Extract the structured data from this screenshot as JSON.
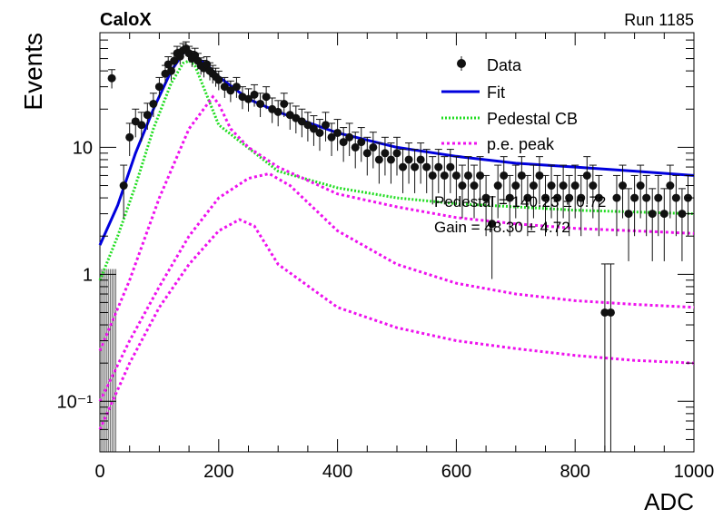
{
  "header": {
    "left": "CaloX",
    "right": "Run 1185"
  },
  "axes": {
    "xlabel": "ADC",
    "ylabel": "Events"
  },
  "stats": {
    "pedestal": "Pedestal = 140.23 ± 0.72",
    "gain": "Gain = 48.30 ± 4.72"
  },
  "legend": {
    "data": "Data",
    "fit": "Fit",
    "pedestal": "Pedestal CB",
    "pe": "p.e. peak"
  },
  "colors": {
    "data": "#111111",
    "fit": "#0000dd",
    "pedestal": "#22dd22",
    "pe": "#ee11ee"
  },
  "chart_data": {
    "type": "scatter",
    "xlim": [
      0,
      1000
    ],
    "ylim": [
      0.04,
      80
    ],
    "yscale": "log",
    "x_ticks": [
      {
        "v": 0,
        "label": "0"
      },
      {
        "v": 200,
        "label": "200"
      },
      {
        "v": 400,
        "label": "400"
      },
      {
        "v": 600,
        "label": "600"
      },
      {
        "v": 800,
        "label": "800"
      },
      {
        "v": 1000,
        "label": "1000"
      }
    ],
    "y_ticks": [
      {
        "v": 0.1,
        "label": "10⁻¹"
      },
      {
        "v": 1,
        "label": "1"
      },
      {
        "v": 10,
        "label": "10"
      }
    ],
    "data_points": [
      [
        20,
        35
      ],
      [
        40,
        5
      ],
      [
        50,
        12
      ],
      [
        60,
        16
      ],
      [
        70,
        15
      ],
      [
        80,
        18
      ],
      [
        90,
        22
      ],
      [
        100,
        30
      ],
      [
        110,
        38
      ],
      [
        115,
        45
      ],
      [
        120,
        40
      ],
      [
        125,
        48
      ],
      [
        130,
        55
      ],
      [
        135,
        52
      ],
      [
        140,
        58
      ],
      [
        145,
        60
      ],
      [
        150,
        55
      ],
      [
        155,
        50
      ],
      [
        160,
        53
      ],
      [
        165,
        48
      ],
      [
        170,
        44
      ],
      [
        175,
        42
      ],
      [
        180,
        45
      ],
      [
        185,
        40
      ],
      [
        190,
        38
      ],
      [
        195,
        36
      ],
      [
        200,
        34
      ],
      [
        210,
        30
      ],
      [
        220,
        28
      ],
      [
        230,
        30
      ],
      [
        240,
        25
      ],
      [
        250,
        24
      ],
      [
        260,
        26
      ],
      [
        270,
        22
      ],
      [
        280,
        25
      ],
      [
        290,
        20
      ],
      [
        300,
        19
      ],
      [
        310,
        22
      ],
      [
        320,
        18
      ],
      [
        330,
        17
      ],
      [
        340,
        16
      ],
      [
        350,
        15
      ],
      [
        360,
        14
      ],
      [
        370,
        13
      ],
      [
        380,
        15
      ],
      [
        390,
        12
      ],
      [
        400,
        13
      ],
      [
        410,
        11
      ],
      [
        420,
        12
      ],
      [
        430,
        10
      ],
      [
        440,
        11
      ],
      [
        450,
        9
      ],
      [
        460,
        10
      ],
      [
        470,
        8
      ],
      [
        480,
        9
      ],
      [
        490,
        8
      ],
      [
        500,
        9
      ],
      [
        510,
        7
      ],
      [
        520,
        8
      ],
      [
        530,
        7
      ],
      [
        540,
        8
      ],
      [
        550,
        7
      ],
      [
        560,
        6
      ],
      [
        570,
        7
      ],
      [
        580,
        6
      ],
      [
        590,
        7
      ],
      [
        600,
        6
      ],
      [
        610,
        5
      ],
      [
        620,
        6
      ],
      [
        630,
        5
      ],
      [
        640,
        6
      ],
      [
        650,
        4
      ],
      [
        660,
        2.5
      ],
      [
        670,
        5
      ],
      [
        680,
        6
      ],
      [
        690,
        4
      ],
      [
        700,
        5
      ],
      [
        710,
        6
      ],
      [
        720,
        4
      ],
      [
        730,
        5
      ],
      [
        740,
        6
      ],
      [
        750,
        4
      ],
      [
        760,
        5
      ],
      [
        770,
        4
      ],
      [
        780,
        5
      ],
      [
        790,
        4
      ],
      [
        800,
        5
      ],
      [
        810,
        4
      ],
      [
        820,
        6
      ],
      [
        830,
        5
      ],
      [
        840,
        4
      ],
      [
        850,
        0.5
      ],
      [
        860,
        0.5
      ],
      [
        870,
        4
      ],
      [
        880,
        5
      ],
      [
        890,
        3
      ],
      [
        900,
        4
      ],
      [
        910,
        5
      ],
      [
        920,
        4
      ],
      [
        930,
        3
      ],
      [
        940,
        4
      ],
      [
        950,
        3
      ],
      [
        960,
        5
      ],
      [
        970,
        4
      ],
      [
        980,
        3
      ],
      [
        990,
        4
      ]
    ],
    "series": [
      {
        "name": "Fit",
        "x": [
          0,
          30,
          60,
          90,
          120,
          140,
          150,
          160,
          180,
          200,
          250,
          300,
          400,
          500,
          600,
          700,
          800,
          900,
          1000
        ],
        "y": [
          1.7,
          3.5,
          9,
          20,
          40,
          55,
          58,
          52,
          45,
          36,
          24,
          19,
          13,
          10,
          8.5,
          7.5,
          7,
          6.5,
          6
        ]
      },
      {
        "name": "Pedestal CB",
        "x": [
          0,
          30,
          60,
          90,
          120,
          140,
          150,
          160,
          200,
          300,
          400,
          500,
          600,
          700,
          800,
          900,
          1000
        ],
        "y": [
          0.9,
          2,
          5,
          14,
          32,
          46,
          48,
          44,
          15,
          6.5,
          4.8,
          4,
          3.6,
          3.4,
          3.2,
          3.1,
          3
        ]
      },
      {
        "name": "p.e. peak",
        "x": [
          0,
          50,
          100,
          150,
          190,
          200,
          220,
          250,
          300,
          400,
          500,
          600,
          700,
          800,
          900,
          1000
        ],
        "y": [
          0.25,
          0.9,
          4,
          14,
          25,
          22,
          14,
          10,
          7,
          4.3,
          3.4,
          2.8,
          2.5,
          2.3,
          2.2,
          2.1
        ]
      },
      {
        "name": "p.e. peak",
        "x": [
          0,
          50,
          100,
          150,
          200,
          250,
          285,
          320,
          400,
          500,
          600,
          700,
          800,
          900,
          1000
        ],
        "y": [
          0.1,
          0.3,
          0.8,
          2.0,
          4.0,
          5.7,
          6.2,
          5.0,
          2.2,
          1.2,
          0.85,
          0.7,
          0.62,
          0.58,
          0.55
        ]
      },
      {
        "name": "p.e. peak",
        "x": [
          0,
          50,
          100,
          150,
          200,
          235,
          260,
          300,
          400,
          500,
          600,
          700,
          800,
          900,
          1000
        ],
        "y": [
          0.06,
          0.2,
          0.55,
          1.2,
          2.2,
          2.7,
          2.4,
          1.2,
          0.55,
          0.38,
          0.3,
          0.26,
          0.23,
          0.21,
          0.2
        ]
      }
    ]
  }
}
